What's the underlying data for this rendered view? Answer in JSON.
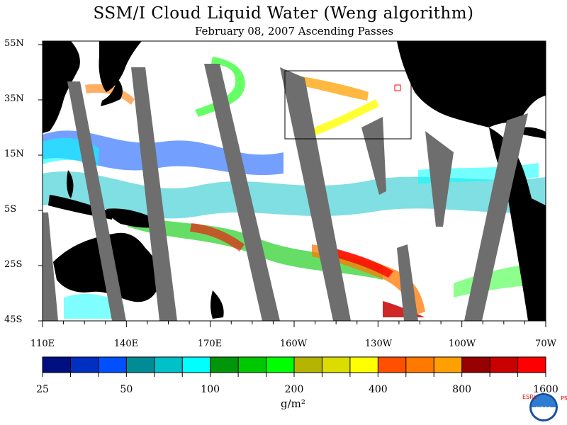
{
  "title": "SSM/I Cloud Liquid Water (Weng algorithm)",
  "subtitle": "February 08, 2007  Ascending Passes",
  "lat_labels": [
    "55N",
    "35N",
    "15N",
    "5S",
    "25S",
    "45S"
  ],
  "lon_labels": [
    "110E",
    "140E",
    "170E",
    "160W",
    "130W",
    "100W",
    "70W"
  ],
  "colorbar": {
    "colors": [
      "#000f80",
      "#0030c0",
      "#0050ff",
      "#008c96",
      "#00c0c8",
      "#00ffff",
      "#00960a",
      "#00c800",
      "#00ff00",
      "#b4b400",
      "#dcdc00",
      "#ffff00",
      "#ff5000",
      "#ff7800",
      "#ffa000",
      "#960000",
      "#c80000",
      "#ff0000"
    ],
    "labels": [
      "25",
      "50",
      "100",
      "200",
      "400",
      "800",
      "1600"
    ],
    "units": "g/m²"
  },
  "logo": {
    "text": "NOAA",
    "left_text": "ESRL",
    "right_text": "PSD"
  }
}
